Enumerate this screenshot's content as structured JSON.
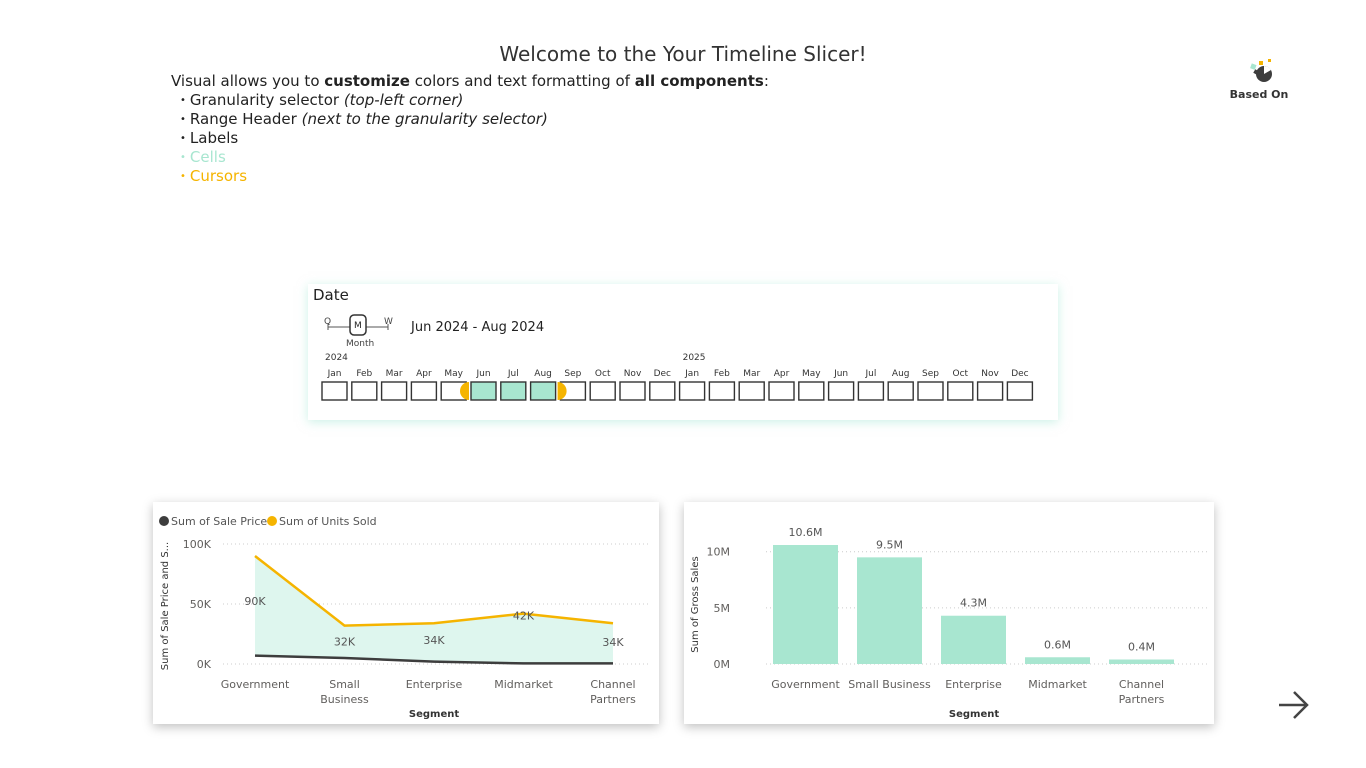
{
  "header": {
    "title": "Welcome to the Your Timeline Slicer!",
    "intro_prefix": "Visual allows you to ",
    "intro_customize": "customize",
    "intro_middle": " colors and text formatting of ",
    "intro_all": "all components",
    "intro_suffix": ":",
    "features": [
      {
        "label": "Granularity selector",
        "note": "(top-left corner)"
      },
      {
        "label": "Range Header",
        "note": "(next to the granularity selector)"
      },
      {
        "label": "Labels",
        "note": ""
      },
      {
        "label": "Cells",
        "note": ""
      },
      {
        "label": "Cursors",
        "note": ""
      }
    ]
  },
  "logo": {
    "label": "Based On",
    "icon": "pie-logo-icon"
  },
  "slicer": {
    "title": "Date",
    "granularity": {
      "options": [
        "Q",
        "M",
        "W"
      ],
      "selected": "M",
      "selected_label": "Month"
    },
    "range_header": "Jun 2024 - Aug 2024",
    "years": [
      "2024",
      "2025"
    ],
    "months_2024": [
      "Jan",
      "Feb",
      "Mar",
      "Apr",
      "May",
      "Jun",
      "Jul",
      "Aug",
      "Sep",
      "Oct",
      "Nov",
      "Dec"
    ],
    "months_2025": [
      "Jan",
      "Feb",
      "Mar",
      "Apr",
      "May",
      "Jun",
      "Jul",
      "Aug",
      "Sep",
      "Oct",
      "Nov",
      "Dec"
    ],
    "selected_start": "Jun 2024",
    "selected_end": "Aug 2024"
  },
  "colors": {
    "cell_fill": "#a8e6d0",
    "cursor": "#f5b400",
    "dark_series": "#3d3d3d",
    "bar": "#a8e6d0",
    "area": "#def6ee",
    "text": "#252423"
  },
  "nav": {
    "next_icon": "arrow-right-icon"
  },
  "chart_data": [
    {
      "type": "area",
      "title": "",
      "xlabel": "Segment",
      "ylabel": "Sum of Sale Price and S...",
      "categories": [
        "Government",
        "Small Business",
        "Enterprise",
        "Midmarket",
        "Channel Partners"
      ],
      "series": [
        {
          "name": "Sum of Sale Price",
          "values": [
            7,
            5,
            2,
            0.5,
            0.5
          ]
        },
        {
          "name": "Sum of Units Sold",
          "values": [
            90000,
            32000,
            34000,
            42000,
            34000
          ],
          "data_labels": [
            "90K",
            "32K",
            "34K",
            "42K",
            "34K"
          ]
        }
      ],
      "yticks": [
        "100K",
        "50K",
        "0K"
      ],
      "ylim": [
        0,
        100000
      ],
      "legend": "top-left",
      "grid": true
    },
    {
      "type": "bar",
      "title": "",
      "xlabel": "Segment",
      "ylabel": "Sum of Gross Sales",
      "categories": [
        "Government",
        "Small Business",
        "Enterprise",
        "Midmarket",
        "Channel Partners"
      ],
      "values": [
        10.6,
        9.5,
        4.3,
        0.6,
        0.4
      ],
      "data_labels": [
        "10.6M",
        "9.5M",
        "4.3M",
        "0.6M",
        "0.4M"
      ],
      "yticks": [
        "10M",
        "5M",
        "0M"
      ],
      "ylim": [
        0,
        10
      ],
      "grid": true
    }
  ]
}
